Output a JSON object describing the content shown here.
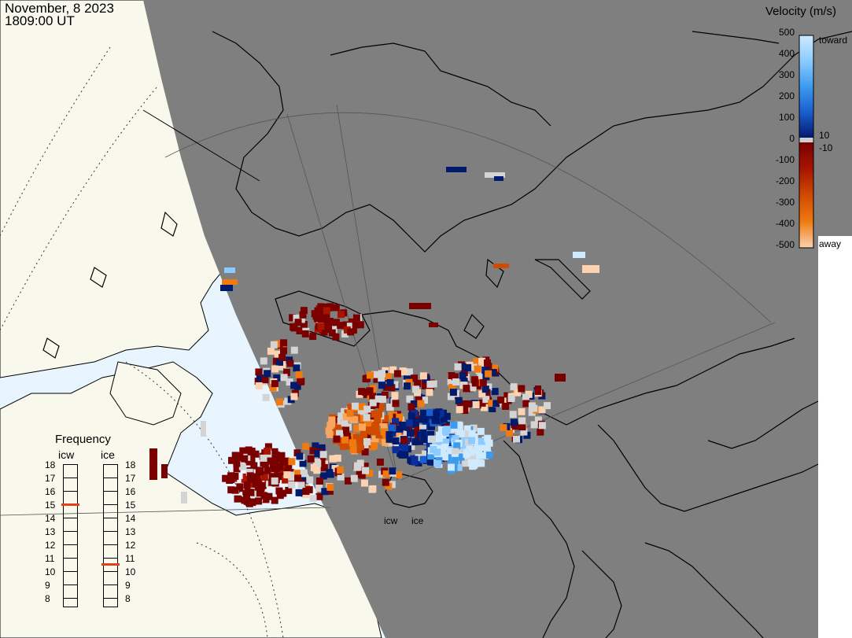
{
  "header": {
    "date": "November, 8 2023",
    "time": "1809:00 UT"
  },
  "colorbar": {
    "title": "Velocity (m/s)",
    "ticks": [
      "500",
      "400",
      "300",
      "200",
      "100",
      "0",
      "-100",
      "-200",
      "-300",
      "-400",
      "-500"
    ],
    "side_labels": [
      "toward",
      "10",
      "-10",
      "away"
    ],
    "toward_colors": [
      "#cfeaff",
      "#8ccbff",
      "#3c9bef",
      "#1a5fcf",
      "#0a2e9a",
      "#001a6e"
    ],
    "away_colors": [
      "#7a0000",
      "#a81400",
      "#d04a00",
      "#f07a10",
      "#f8a660",
      "#fcd2b0"
    ]
  },
  "frequency": {
    "title": "Frequency",
    "radars": [
      {
        "name": "icw",
        "labels": [
          "18",
          "17",
          "16",
          "15",
          "14",
          "13",
          "12",
          "11",
          "10",
          "9",
          "8"
        ],
        "value_mhz": 15
      },
      {
        "name": "ice",
        "labels": [
          "18",
          "17",
          "16",
          "15",
          "14",
          "13",
          "12",
          "11",
          "10",
          "9",
          "8"
        ],
        "value_mhz": 10.5
      }
    ],
    "marker_color": "#e0401a"
  },
  "radar_labels": [
    "icw",
    "ice"
  ],
  "map_colors": {
    "night": "#7f7f7f",
    "ocean": "#e8f5ff",
    "land": "#f8f8ec",
    "coast": "#000000",
    "grid": "#555555"
  }
}
